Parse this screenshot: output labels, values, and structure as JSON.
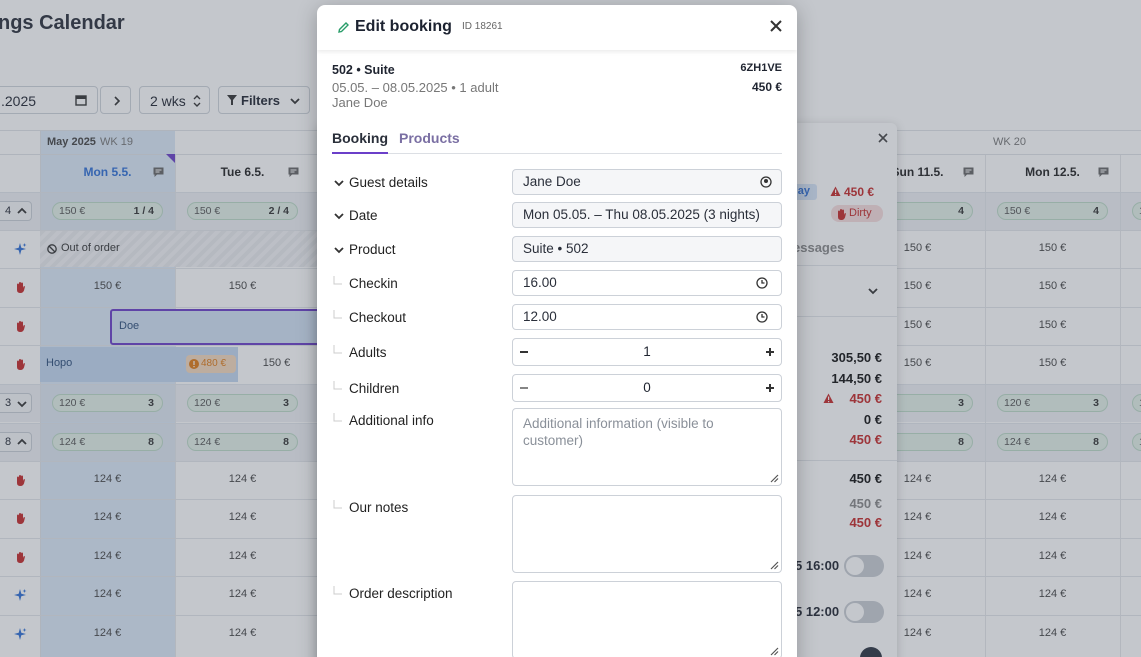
{
  "calendar": {
    "title": "ngs Calendar",
    "date": ".2025",
    "range": "2 wks",
    "filters": "Filters",
    "month": "May 2025",
    "weeks": [
      "WK 19",
      "WK 20"
    ],
    "days": [
      "Mon 5.5.",
      "Tue 6.5.",
      "Sun 11.5.",
      "Mon 12.5."
    ],
    "rows": [
      {
        "group": "4",
        "cells": [
          {
            "price": "150 €",
            "count": "1 / 4"
          },
          {
            "price": "150 €",
            "count": "2 / 4"
          },
          {
            "count": "4"
          },
          {
            "price": "150 €",
            "count": "4"
          },
          {
            "price": "1"
          }
        ]
      },
      {
        "block": "Out of order",
        "cells": [
          null,
          null,
          "150 €",
          "150 €",
          null
        ]
      },
      {
        "cells": [
          "150 €",
          "150 €",
          "150 €",
          "150 €",
          null
        ]
      },
      {
        "booking": "Doe",
        "cells": [
          null,
          null,
          "150 €",
          "150 €",
          null
        ]
      },
      {
        "booking": "Hopo",
        "badge": "480 €",
        "cells": [
          null,
          "150 €",
          "150 €",
          "150 €",
          null
        ]
      },
      {
        "group": "3",
        "cells": [
          {
            "price": "120 €",
            "count": "3"
          },
          {
            "price": "120 €",
            "count": "3"
          },
          {
            "count": "3"
          },
          {
            "price": "120 €",
            "count": "3"
          },
          {
            "price": "1"
          }
        ]
      },
      {
        "group": "8",
        "cells": [
          {
            "price": "124 €",
            "count": "8"
          },
          {
            "price": "124 €",
            "count": "8"
          },
          {
            "count": "8"
          },
          {
            "price": "124 €",
            "count": "8"
          },
          {
            "price": "1"
          }
        ]
      },
      {
        "cells": [
          "124 €",
          "124 €",
          "124 €",
          "124 €",
          null
        ]
      },
      {
        "cells": [
          "124 €",
          "124 €",
          "124 €",
          "124 €",
          null
        ]
      },
      {
        "cells": [
          "124 €",
          "124 €",
          "124 €",
          "124 €",
          null
        ]
      },
      {
        "cells": [
          "124 €",
          "124 €",
          "124 €",
          "124 €",
          null
        ]
      },
      {
        "cells": [
          "124 €",
          "124 €",
          "124 €",
          "124 €",
          null
        ]
      }
    ]
  },
  "popover": {
    "tag": "day",
    "price": "450 €",
    "status": "Dirty",
    "tab": "essages",
    "amounts": [
      "305,50 €",
      "144,50 €",
      "450 €",
      "0 €",
      "450 €"
    ],
    "totals": [
      "450 €",
      "450 €",
      "450 €"
    ],
    "times": [
      "5 16:00",
      "5 12:00"
    ]
  },
  "modal": {
    "title": "Edit booking",
    "id": "ID 18261",
    "summary": {
      "room": "502 • Suite",
      "dates": "05.05. – 08.05.2025 • 1 adult",
      "guest": "Jane Doe",
      "code": "6ZH1VE",
      "price": "450 €"
    },
    "tabs": [
      "Booking",
      "Products"
    ],
    "fields": [
      {
        "label": "Guest details",
        "value": "Jane Doe"
      },
      {
        "label": "Date",
        "value": "Mon 05.05. – Thu 08.05.2025 (3 nights)"
      },
      {
        "label": "Product",
        "value": "Suite • 502"
      },
      {
        "label": "Checkin",
        "value": "16.00"
      },
      {
        "label": "Checkout",
        "value": "12.00"
      },
      {
        "label": "Adults",
        "value": 1
      },
      {
        "label": "Children",
        "value": 0
      },
      {
        "label": "Additional info",
        "placeholder": "Additional information (visible to customer)"
      },
      {
        "label": "Our notes"
      },
      {
        "label": "Order description"
      }
    ]
  }
}
